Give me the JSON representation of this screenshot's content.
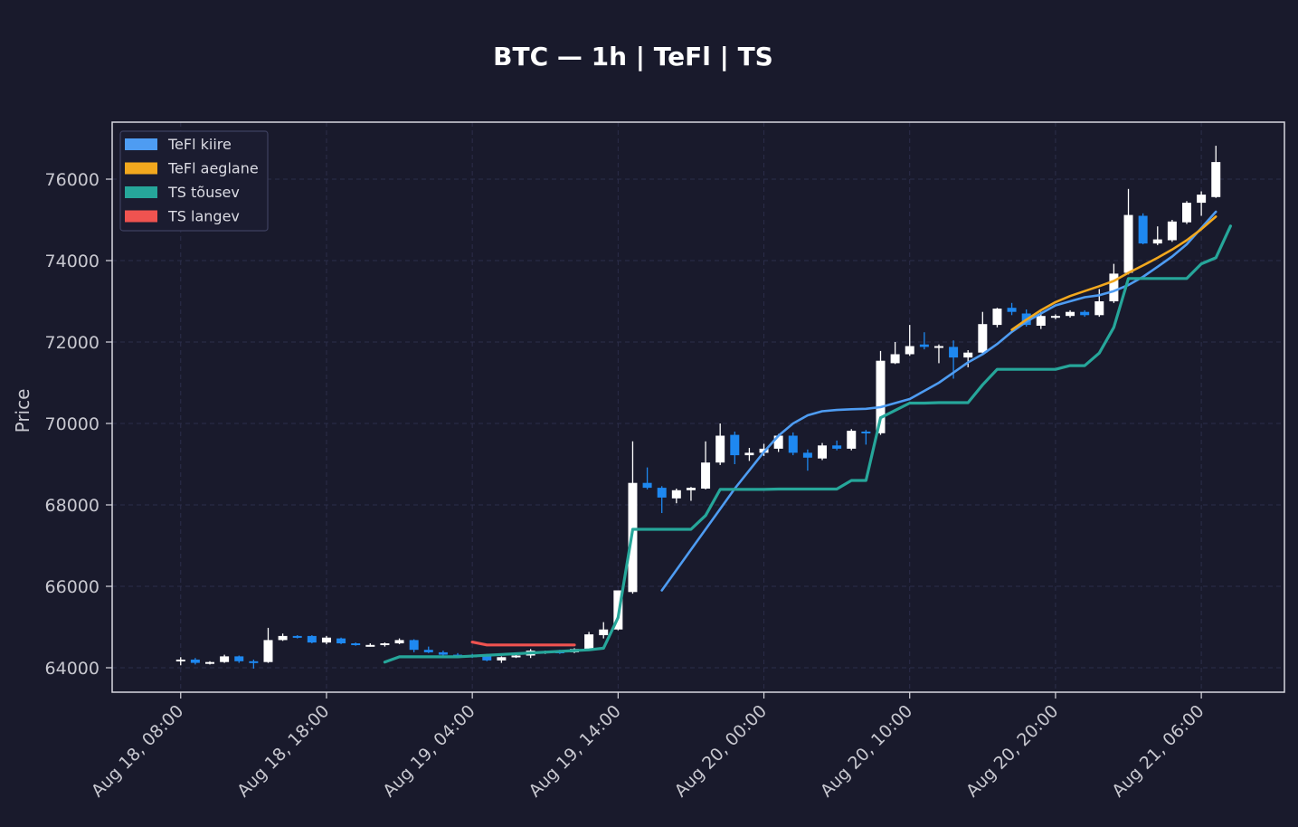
{
  "chart_data": {
    "type": "candlestick",
    "title": "BTC — 1h  |  TeFl  |  TS",
    "ylabel": "Price",
    "xlabel": "",
    "ylim": [
      63400,
      77400
    ],
    "xlim_hours": [
      -4.7,
      75.7
    ],
    "y_ticks": [
      64000,
      66000,
      68000,
      70000,
      72000,
      74000,
      76000
    ],
    "x_ticks": [
      {
        "h": 0,
        "label": "Aug 18, 08:00"
      },
      {
        "h": 10,
        "label": "Aug 18, 18:00"
      },
      {
        "h": 20,
        "label": "Aug 19, 04:00"
      },
      {
        "h": 30,
        "label": "Aug 19, 14:00"
      },
      {
        "h": 40,
        "label": "Aug 20, 00:00"
      },
      {
        "h": 50,
        "label": "Aug 20, 10:00"
      },
      {
        "h": 60,
        "label": "Aug 20, 20:00"
      },
      {
        "h": 70,
        "label": "Aug 21, 06:00"
      }
    ],
    "grid": true,
    "legend_position": "top-left",
    "colors": {
      "background": "#191a2c",
      "up_candle": "#ffffff",
      "down_candle": "#1e88f0",
      "grid": "#2c2e4a",
      "axes": "#d8d8e0"
    },
    "candles": [
      [
        64180,
        64260,
        64060,
        64200
      ],
      [
        64200,
        64240,
        64080,
        64120
      ],
      [
        64120,
        64160,
        64080,
        64140
      ],
      [
        64140,
        64320,
        64120,
        64280
      ],
      [
        64280,
        64300,
        64120,
        64160
      ],
      [
        64160,
        64200,
        63980,
        64140
      ],
      [
        64140,
        64980,
        64120,
        64680
      ],
      [
        64680,
        64840,
        64660,
        64780
      ],
      [
        64780,
        64800,
        64720,
        64760
      ],
      [
        64780,
        64800,
        64600,
        64620
      ],
      [
        64620,
        64780,
        64580,
        64740
      ],
      [
        64720,
        64740,
        64580,
        64600
      ],
      [
        64600,
        64620,
        64540,
        64560
      ],
      [
        64540,
        64600,
        64520,
        64560
      ],
      [
        64560,
        64620,
        64520,
        64600
      ],
      [
        64600,
        64720,
        64580,
        64680
      ],
      [
        64680,
        64700,
        64380,
        64440
      ],
      [
        64440,
        64520,
        64360,
        64380
      ],
      [
        64380,
        64420,
        64300,
        64320
      ],
      [
        64320,
        64360,
        64260,
        64300
      ],
      [
        64300,
        64340,
        64240,
        64280
      ],
      [
        64280,
        64340,
        64160,
        64180
      ],
      [
        64180,
        64280,
        64120,
        64260
      ],
      [
        64260,
        64340,
        64240,
        64300
      ],
      [
        64300,
        64460,
        64240,
        64420
      ],
      [
        64360,
        64420,
        64340,
        64400
      ],
      [
        64400,
        64440,
        64340,
        64380
      ],
      [
        64380,
        64480,
        64360,
        64460
      ],
      [
        64440,
        64880,
        64420,
        64820
      ],
      [
        64800,
        65120,
        64720,
        64940
      ],
      [
        64940,
        65900,
        64920,
        65900
      ],
      [
        65860,
        69560,
        65820,
        68540
      ],
      [
        68540,
        68920,
        68380,
        68420
      ],
      [
        68420,
        68460,
        67800,
        68180
      ],
      [
        68160,
        68400,
        68040,
        68360
      ],
      [
        68360,
        68440,
        68100,
        68420
      ],
      [
        68400,
        69560,
        68380,
        69040
      ],
      [
        69040,
        70000,
        68980,
        69700
      ],
      [
        69720,
        69800,
        69000,
        69220
      ],
      [
        69220,
        69400,
        69080,
        69280
      ],
      [
        69280,
        69500,
        69200,
        69380
      ],
      [
        69380,
        69740,
        69300,
        69700
      ],
      [
        69700,
        69780,
        69220,
        69280
      ],
      [
        69280,
        69360,
        68840,
        69160
      ],
      [
        69140,
        69520,
        69100,
        69460
      ],
      [
        69460,
        69580,
        69340,
        69380
      ],
      [
        69380,
        69860,
        69340,
        69820
      ],
      [
        69800,
        69840,
        69480,
        69760
      ],
      [
        69760,
        71780,
        69720,
        71540
      ],
      [
        71480,
        72000,
        71460,
        71700
      ],
      [
        71700,
        72420,
        71660,
        71900
      ],
      [
        71940,
        72240,
        71820,
        71880
      ],
      [
        71880,
        71940,
        71480,
        71900
      ],
      [
        71880,
        72040,
        71100,
        71620
      ],
      [
        71620,
        71800,
        71380,
        71740
      ],
      [
        71740,
        72740,
        71700,
        72440
      ],
      [
        72420,
        72840,
        72360,
        72820
      ],
      [
        72840,
        72960,
        72660,
        72740
      ],
      [
        72700,
        72800,
        72380,
        72420
      ],
      [
        72400,
        72740,
        72320,
        72640
      ],
      [
        72620,
        72680,
        72560,
        72640
      ],
      [
        72640,
        72780,
        72600,
        72740
      ],
      [
        72740,
        72780,
        72620,
        72660
      ],
      [
        72660,
        73300,
        72620,
        73000
      ],
      [
        73000,
        73920,
        72960,
        73680
      ],
      [
        73700,
        75760,
        73660,
        75120
      ],
      [
        75100,
        75160,
        74400,
        74420
      ],
      [
        74420,
        74840,
        74380,
        74520
      ],
      [
        74500,
        75000,
        74460,
        74960
      ],
      [
        74940,
        75460,
        74900,
        75420
      ],
      [
        75420,
        75700,
        75100,
        75620
      ],
      [
        75560,
        76820,
        75540,
        76420
      ]
    ],
    "series": [
      {
        "name": "TeFl kiire",
        "color": "#4e9cf2",
        "points": [
          [
            33,
            65900
          ],
          [
            35,
            66900
          ],
          [
            37,
            67900
          ],
          [
            38,
            68400
          ],
          [
            39,
            68850
          ],
          [
            40,
            69300
          ],
          [
            41,
            69700
          ],
          [
            42,
            70000
          ],
          [
            43,
            70200
          ],
          [
            44,
            70300
          ],
          [
            45,
            70330
          ],
          [
            46,
            70350
          ],
          [
            47,
            70360
          ],
          [
            48,
            70400
          ],
          [
            49,
            70500
          ],
          [
            50,
            70600
          ],
          [
            51,
            70800
          ],
          [
            52,
            71000
          ],
          [
            53,
            71250
          ],
          [
            54,
            71500
          ],
          [
            55,
            71700
          ],
          [
            56,
            71950
          ],
          [
            57,
            72250
          ],
          [
            58,
            72500
          ],
          [
            59,
            72700
          ],
          [
            60,
            72900
          ],
          [
            61,
            73000
          ],
          [
            62,
            73100
          ],
          [
            63,
            73150
          ],
          [
            64,
            73250
          ],
          [
            65,
            73400
          ],
          [
            66,
            73600
          ],
          [
            67,
            73850
          ],
          [
            68,
            74100
          ],
          [
            69,
            74400
          ],
          [
            70,
            74800
          ],
          [
            71,
            75200
          ]
        ]
      },
      {
        "name": "TeFl aeglane",
        "color": "#f2a81e",
        "points": [
          [
            57,
            72300
          ],
          [
            58,
            72550
          ],
          [
            59,
            72780
          ],
          [
            60,
            72980
          ],
          [
            61,
            73130
          ],
          [
            62,
            73250
          ],
          [
            63,
            73370
          ],
          [
            64,
            73500
          ],
          [
            65,
            73700
          ],
          [
            66,
            73880
          ],
          [
            67,
            74070
          ],
          [
            68,
            74270
          ],
          [
            69,
            74500
          ],
          [
            70,
            74770
          ],
          [
            71,
            75080
          ]
        ]
      },
      {
        "name": "TS tõusev",
        "color": "#26a69a",
        "points": [
          [
            14,
            64140
          ],
          [
            15,
            64270
          ],
          [
            16,
            64270
          ],
          [
            17,
            64270
          ],
          [
            18,
            64270
          ],
          [
            19,
            64270
          ],
          [
            28,
            64440
          ],
          [
            29,
            64480
          ],
          [
            30,
            65230
          ],
          [
            31,
            67400
          ],
          [
            32,
            67400
          ],
          [
            33,
            67400
          ],
          [
            34,
            67400
          ],
          [
            35,
            67400
          ],
          [
            36,
            67740
          ],
          [
            37,
            68380
          ],
          [
            38,
            68380
          ],
          [
            39,
            68380
          ],
          [
            40,
            68380
          ],
          [
            41,
            68390
          ],
          [
            42,
            68390
          ],
          [
            43,
            68390
          ],
          [
            44,
            68390
          ],
          [
            45,
            68390
          ],
          [
            46,
            68600
          ],
          [
            47,
            68600
          ],
          [
            48,
            70140
          ],
          [
            49,
            70320
          ],
          [
            50,
            70500
          ],
          [
            51,
            70500
          ],
          [
            52,
            70510
          ],
          [
            53,
            70510
          ],
          [
            54,
            70510
          ],
          [
            55,
            70950
          ],
          [
            56,
            71330
          ],
          [
            57,
            71330
          ],
          [
            58,
            71330
          ],
          [
            59,
            71330
          ],
          [
            60,
            71330
          ],
          [
            61,
            71420
          ],
          [
            62,
            71420
          ],
          [
            63,
            71730
          ],
          [
            64,
            72360
          ],
          [
            65,
            73560
          ],
          [
            66,
            73560
          ],
          [
            67,
            73560
          ],
          [
            68,
            73560
          ],
          [
            69,
            73560
          ],
          [
            70,
            73920
          ],
          [
            71,
            74070
          ],
          [
            72,
            74850
          ]
        ]
      },
      {
        "name": "TS langev",
        "color": "#ef5350",
        "points": [
          [
            20,
            64630
          ],
          [
            21,
            64560
          ],
          [
            22,
            64560
          ],
          [
            23,
            64560
          ],
          [
            24,
            64560
          ],
          [
            25,
            64560
          ],
          [
            26,
            64560
          ],
          [
            27,
            64560
          ]
        ]
      }
    ]
  }
}
